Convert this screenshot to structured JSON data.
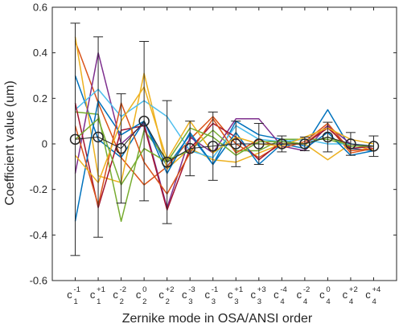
{
  "chart_data": {
    "type": "line",
    "xlabel": "Zernike mode in OSA/ANSI order",
    "ylabel": "Coefficient value (um)",
    "ylim": [
      -0.6,
      0.6
    ],
    "yticks": [
      -0.6,
      -0.4,
      -0.2,
      0,
      0.2,
      0.4,
      0.6
    ],
    "ytick_labels": [
      "-0.6",
      "-0.4",
      "-0.2",
      "0",
      "0.2",
      "0.4",
      "0.6"
    ],
    "categories": [
      {
        "base": "c",
        "sup": "-1",
        "sub": "1"
      },
      {
        "base": "c",
        "sup": "+1",
        "sub": "1"
      },
      {
        "base": "c",
        "sup": "-2",
        "sub": "2"
      },
      {
        "base": "c",
        "sup": "0",
        "sub": "2"
      },
      {
        "base": "c",
        "sup": "+2",
        "sub": "2"
      },
      {
        "base": "c",
        "sup": "-3",
        "sub": "3"
      },
      {
        "base": "c",
        "sup": "-1",
        "sub": "3"
      },
      {
        "base": "c",
        "sup": "+1",
        "sub": "3"
      },
      {
        "base": "c",
        "sup": "+3",
        "sub": "3"
      },
      {
        "base": "c",
        "sup": "-4",
        "sub": "4"
      },
      {
        "base": "c",
        "sup": "-2",
        "sub": "4"
      },
      {
        "base": "c",
        "sup": "0",
        "sub": "4"
      },
      {
        "base": "c",
        "sup": "+2",
        "sub": "4"
      },
      {
        "base": "c",
        "sup": "+4",
        "sub": "4"
      }
    ],
    "series": [
      {
        "color": "#0072BD",
        "values": [
          0.3,
          0.02,
          -0.06,
          0.1,
          -0.1,
          0.04,
          -0.09,
          0.1,
          0.04,
          0.02,
          -0.01,
          0.15,
          -0.02,
          -0.03
        ]
      },
      {
        "color": "#D95319",
        "values": [
          0.45,
          0.18,
          -0.06,
          -0.18,
          -0.1,
          0.02,
          0.12,
          0.0,
          -0.06,
          0.0,
          0.0,
          0.08,
          -0.04,
          -0.02
        ]
      },
      {
        "color": "#EDB120",
        "values": [
          0.47,
          -0.14,
          -0.17,
          0.31,
          -0.11,
          -0.02,
          -0.07,
          -0.08,
          -0.04,
          0.0,
          0.0,
          -0.07,
          0.0,
          -0.03
        ]
      },
      {
        "color": "#7E2F8E",
        "values": [
          -0.13,
          0.4,
          0.0,
          0.09,
          -0.28,
          0.03,
          -0.04,
          0.11,
          0.11,
          -0.01,
          -0.03,
          0.08,
          0.0,
          -0.02
        ]
      },
      {
        "color": "#77AC30",
        "values": [
          0.14,
          0.13,
          -0.34,
          0.06,
          -0.07,
          -0.03,
          0.06,
          -0.03,
          -0.03,
          0.02,
          0.02,
          0.02,
          -0.01,
          -0.01
        ]
      },
      {
        "color": "#4DBEEE",
        "values": [
          0.15,
          0.24,
          0.12,
          0.19,
          0.12,
          -0.03,
          -0.06,
          0.08,
          0.02,
          0.01,
          0.02,
          0.0,
          0.0,
          -0.01
        ]
      },
      {
        "color": "#A2142F",
        "values": [
          0.18,
          -0.28,
          0.06,
          0.08,
          -0.29,
          -0.02,
          0.09,
          0.03,
          -0.07,
          0.01,
          0.0,
          0.07,
          -0.02,
          -0.01
        ]
      },
      {
        "color": "#0072BD",
        "values": [
          -0.34,
          0.19,
          0.04,
          0.1,
          -0.13,
          0.05,
          -0.09,
          0.05,
          -0.09,
          0.0,
          -0.02,
          0.05,
          -0.05,
          -0.03
        ]
      },
      {
        "color": "#D95319",
        "values": [
          0.08,
          -0.27,
          0.18,
          -0.08,
          -0.22,
          -0.04,
          0.11,
          -0.04,
          0.02,
          -0.02,
          0.01,
          0.09,
          -0.03,
          -0.02
        ]
      },
      {
        "color": "#EDB120",
        "values": [
          -0.05,
          -0.17,
          0.1,
          0.25,
          -0.07,
          0.1,
          -0.04,
          0.03,
          0.0,
          -0.01,
          0.03,
          0.07,
          0.02,
          0.0
        ]
      },
      {
        "color": "#77AC30",
        "values": [
          0.02,
          0.11,
          -0.18,
          -0.02,
          -0.08,
          0.07,
          0.03,
          -0.05,
          0.01,
          0.01,
          0.0,
          0.03,
          -0.01,
          -0.01
        ]
      }
    ],
    "mean": {
      "color": "#262626",
      "values": [
        0.02,
        0.03,
        -0.02,
        0.1,
        -0.08,
        -0.02,
        -0.01,
        0.0,
        0.0,
        0.0,
        0.0,
        0.03,
        0.0,
        -0.01
      ],
      "error": [
        0.51,
        0.44,
        0.24,
        0.35,
        0.27,
        0.12,
        0.15,
        0.1,
        0.09,
        0.035,
        0.03,
        0.065,
        0.05,
        0.045
      ]
    },
    "grid": false
  }
}
